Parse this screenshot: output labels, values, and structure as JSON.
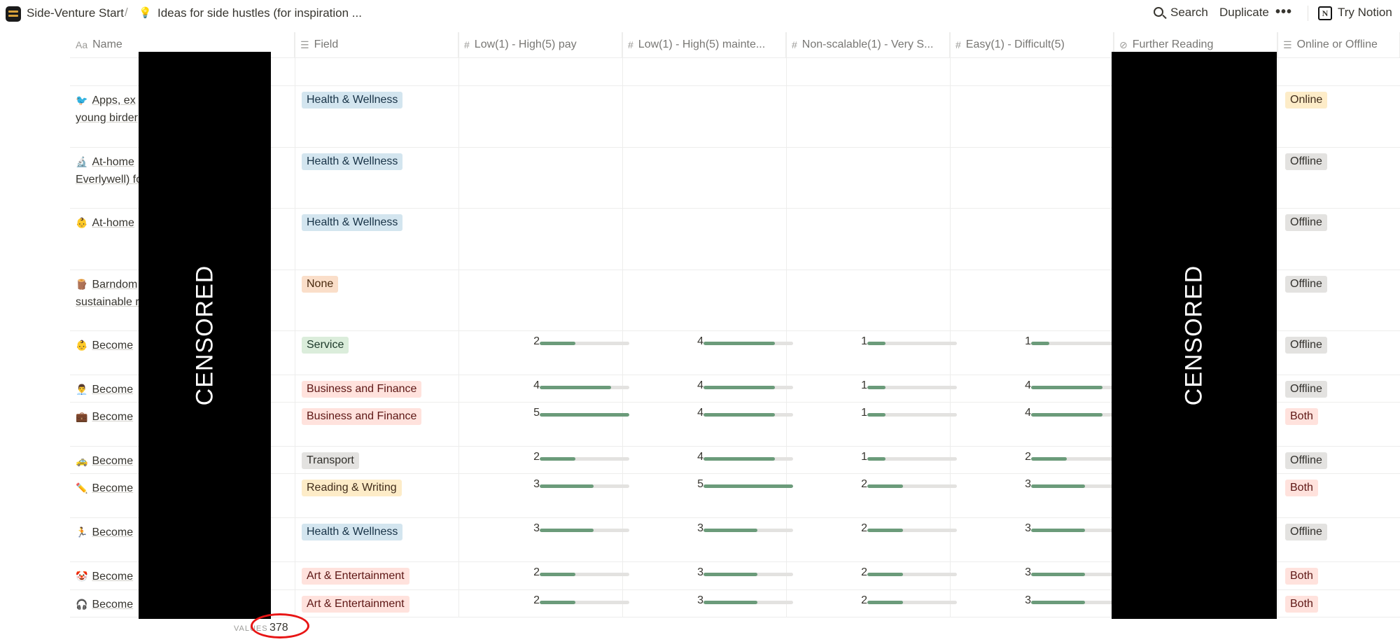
{
  "breadcrumb": {
    "workspace": "Side-Venture Start",
    "separator": "/",
    "page": "Ideas for side hustles (for inspiration ..."
  },
  "topbar": {
    "search": "Search",
    "duplicate": "Duplicate",
    "more": "•••",
    "try_notion": "Try Notion",
    "notion_logo": "N"
  },
  "columns": [
    {
      "icon": "Aa",
      "label": "Name"
    },
    {
      "icon": "☰",
      "label": "Field"
    },
    {
      "icon": "#",
      "label": "Low(1) - High(5) pay"
    },
    {
      "icon": "#",
      "label": "Low(1) - High(5) mainte..."
    },
    {
      "icon": "#",
      "label": "Non-scalable(1) - Very S..."
    },
    {
      "icon": "#",
      "label": "Easy(1) - Difficult(5)"
    },
    {
      "icon": "⊘",
      "label": "Further Reading"
    },
    {
      "icon": "☰",
      "label": "Online or Offline"
    }
  ],
  "rows": [
    {
      "emoji": "🐦",
      "name1": "Apps, ex",
      "name2": "young birder",
      "field": "Health & Wellness",
      "field_style": "health",
      "pay": null,
      "maint": null,
      "scal": null,
      "diff": null,
      "mode": "Online",
      "mode_style": "online"
    },
    {
      "emoji": "🔬",
      "name1": "At-home",
      "name2": "Everlywell) fo",
      "field": "Health & Wellness",
      "field_style": "health",
      "pay": null,
      "maint": null,
      "scal": null,
      "diff": null,
      "mode": "Offline",
      "mode_style": "offline"
    },
    {
      "emoji": "👶",
      "name1": "At-home",
      "name2": "",
      "field": "Health & Wellness",
      "field_style": "health",
      "pay": null,
      "maint": null,
      "scal": null,
      "diff": null,
      "mode": "Offline",
      "mode_style": "offline"
    },
    {
      "emoji": "🪵",
      "name1": "Barndom",
      "name2": "sustainable r",
      "field": "None",
      "field_style": "none",
      "pay": null,
      "maint": null,
      "scal": null,
      "diff": null,
      "mode": "Offline",
      "mode_style": "offline"
    },
    {
      "emoji": "👶",
      "name1": "Become",
      "name2": "",
      "field": "Service",
      "field_style": "service",
      "pay": 2,
      "maint": 4,
      "scal": 1,
      "diff": 1,
      "mode": "Offline",
      "mode_style": "offline"
    },
    {
      "emoji": "👨‍💼",
      "name1": "Become",
      "name2": "",
      "field": "Business and Finance",
      "field_style": "business",
      "pay": 4,
      "maint": 4,
      "scal": 1,
      "diff": 4,
      "mode": "Offline",
      "mode_style": "offline"
    },
    {
      "emoji": "💼",
      "name1": "Become",
      "name2": "",
      "field": "Business and Finance",
      "field_style": "business",
      "pay": 5,
      "maint": 4,
      "scal": 1,
      "diff": 4,
      "mode": "Both",
      "mode_style": "both"
    },
    {
      "emoji": "🚕",
      "name1": "Become",
      "name2": "",
      "field": "Transport",
      "field_style": "transport",
      "pay": 2,
      "maint": 4,
      "scal": 1,
      "diff": 2,
      "mode": "Offline",
      "mode_style": "offline"
    },
    {
      "emoji": "✏️",
      "name1": "Become",
      "name2": "",
      "field": "Reading & Writing",
      "field_style": "reading",
      "pay": 3,
      "maint": 5,
      "scal": 2,
      "diff": 3,
      "mode": "Both",
      "mode_style": "both"
    },
    {
      "emoji": "🏃",
      "name1": "Become",
      "name2": "",
      "field": "Health & Wellness",
      "field_style": "health",
      "pay": 3,
      "maint": 3,
      "scal": 2,
      "diff": 3,
      "mode": "Offline",
      "mode_style": "offline"
    },
    {
      "emoji": "🤡",
      "name1": "Become",
      "name2": "",
      "field": "Art & Entertainment",
      "field_style": "art",
      "pay": 2,
      "maint": 3,
      "scal": 2,
      "diff": 3,
      "mode": "Both",
      "mode_style": "both"
    },
    {
      "emoji": "🎧",
      "name1": "Become",
      "name2": "",
      "field": "Art & Entertainment",
      "field_style": "art",
      "pay": 2,
      "maint": 3,
      "scal": 2,
      "diff": 3,
      "mode": "Both",
      "mode_style": "both"
    }
  ],
  "rating_max": 5,
  "censor_label": "CENSORED",
  "footer": {
    "label": "VALUES",
    "count": "378"
  },
  "colors": {
    "bar_fill": "#6b9b7a",
    "bar_track": "#e3e2e0",
    "annotation_circle": "#e81515"
  }
}
